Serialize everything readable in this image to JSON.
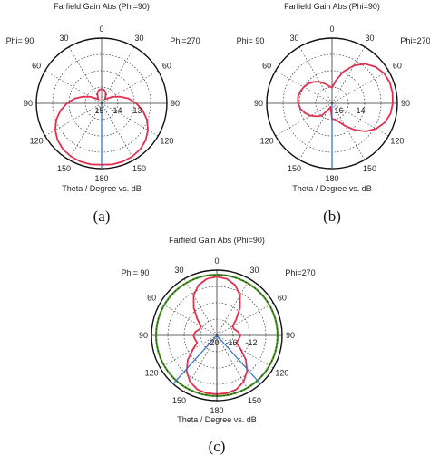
{
  "chart_data": [
    {
      "type": "polar",
      "panel": "(a)",
      "title": "Farfield Gain Abs (Phi=90)",
      "left_label": "Phi= 90",
      "right_label": "Phi=270",
      "axis_label": "Theta / Degree vs. dB",
      "angle_ticks": [
        "0",
        "30",
        "60",
        "90",
        "120",
        "150",
        "180",
        "150",
        "120",
        "90",
        "60",
        "30"
      ],
      "radial_ticks": [
        "-15",
        "-14",
        "-13"
      ],
      "caption": "(a)",
      "pattern_theta_deg": [
        0,
        10,
        20,
        30,
        40,
        50,
        60,
        70,
        80,
        90,
        100,
        110,
        120,
        130,
        140,
        150,
        160,
        170,
        180
      ],
      "pattern_r_norm": [
        0.22,
        0.21,
        0.18,
        0.12,
        0.08,
        0.12,
        0.2,
        0.3,
        0.42,
        0.53,
        0.64,
        0.74,
        0.82,
        0.88,
        0.92,
        0.94,
        0.95,
        0.95,
        0.94
      ],
      "main_lobe_theta_deg": 180,
      "show_green_circle": false,
      "beam_lines": "vertical"
    },
    {
      "type": "polar",
      "panel": "(b)",
      "title": "Farfield Gain Abs (Phi=90)",
      "left_label": "Phi= 90",
      "right_label": "Phi=270",
      "axis_label": "Theta / Degree vs. dB",
      "angle_ticks": [
        "0",
        "30",
        "60",
        "90",
        "120",
        "150",
        "180",
        "150",
        "120",
        "90",
        "60",
        "30"
      ],
      "radial_ticks": [
        "-16",
        "-14"
      ],
      "caption": "(b)",
      "right_half_theta_deg": [
        0,
        10,
        20,
        30,
        40,
        50,
        60,
        70,
        80,
        90,
        100,
        110,
        120,
        130,
        140,
        150,
        160,
        170,
        180
      ],
      "right_half_r_norm": [
        0.24,
        0.36,
        0.52,
        0.67,
        0.79,
        0.87,
        0.92,
        0.94,
        0.94,
        0.93,
        0.91,
        0.86,
        0.78,
        0.67,
        0.53,
        0.4,
        0.3,
        0.25,
        0.24
      ],
      "left_half_theta_deg": [
        0,
        10,
        20,
        30,
        40,
        50,
        60,
        70,
        80,
        90,
        100,
        110,
        120,
        130,
        140,
        150,
        160,
        170,
        180
      ],
      "left_half_r_norm": [
        0.24,
        0.27,
        0.32,
        0.38,
        0.43,
        0.47,
        0.5,
        0.52,
        0.53,
        0.52,
        0.49,
        0.44,
        0.38,
        0.31,
        0.25,
        0.11,
        0.06,
        0.1,
        0.24
      ],
      "show_green_circle": false,
      "beam_lines": "vertical"
    },
    {
      "type": "polar",
      "panel": "(c)",
      "title": "Farfield Gain Abs (Phi=90)",
      "left_label": "Phi= 90",
      "right_label": "Phi=270",
      "axis_label": "Theta / Degree vs. dB",
      "angle_ticks": [
        "0",
        "30",
        "60",
        "90",
        "120",
        "150",
        "180",
        "150",
        "120",
        "90",
        "60",
        "30"
      ],
      "radial_ticks": [
        "-20",
        "-16",
        "-12"
      ],
      "caption": "(c)",
      "pattern_theta_deg": [
        0,
        10,
        20,
        30,
        40,
        50,
        60,
        70,
        80,
        90,
        100,
        110,
        120,
        130,
        140,
        150,
        160,
        170,
        180
      ],
      "pattern_r_norm": [
        0.9,
        0.88,
        0.82,
        0.71,
        0.55,
        0.39,
        0.28,
        0.28,
        0.33,
        0.36,
        0.34,
        0.32,
        0.42,
        0.58,
        0.72,
        0.82,
        0.88,
        0.9,
        0.9
      ],
      "show_green_circle": true,
      "green_circle_r_norm": 0.93,
      "beam_lines": "v-shape",
      "beam_half_angle_deg": 42
    }
  ],
  "colors": {
    "pattern": "#e0304f",
    "beam": "#3a78c7",
    "green": "#4f9a2a",
    "grid": "#333333",
    "text": "#222222"
  }
}
